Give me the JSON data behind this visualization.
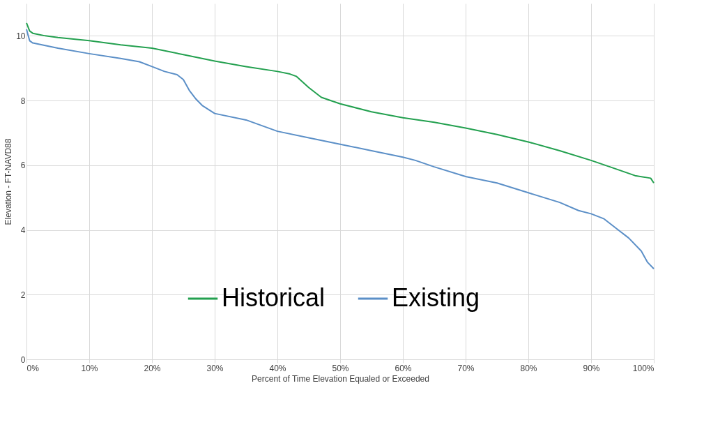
{
  "chart_data": {
    "type": "line",
    "xlabel": "Percent of Time Elevation Equaled or Exceeded",
    "ylabel": "Elevation - FT-NAVD88",
    "xlim": [
      0,
      100
    ],
    "ylim": [
      0,
      11
    ],
    "xticks": [
      {
        "value": 0,
        "label": "0%"
      },
      {
        "value": 10,
        "label": "10%"
      },
      {
        "value": 20,
        "label": "20%"
      },
      {
        "value": 30,
        "label": "30%"
      },
      {
        "value": 40,
        "label": "40%"
      },
      {
        "value": 50,
        "label": "50%"
      },
      {
        "value": 60,
        "label": "60%"
      },
      {
        "value": 70,
        "label": "70%"
      },
      {
        "value": 80,
        "label": "80%"
      },
      {
        "value": 90,
        "label": "90%"
      },
      {
        "value": 100,
        "label": "100%"
      }
    ],
    "yticks": [
      0,
      2,
      4,
      6,
      8,
      10
    ],
    "grid": true,
    "legend": "bottom",
    "marker": "none",
    "line_style": "solid",
    "series": [
      {
        "name": "Historical",
        "color": "#23a04f",
        "x": [
          0,
          0.5,
          1,
          3,
          5,
          10,
          15,
          20,
          25,
          30,
          35,
          40,
          42,
          43,
          45,
          47,
          50,
          55,
          60,
          65,
          70,
          75,
          80,
          85,
          90,
          93,
          97,
          99.5,
          100
        ],
        "values": [
          10.4,
          10.15,
          10.08,
          10.0,
          9.95,
          9.85,
          9.72,
          9.62,
          9.42,
          9.22,
          9.05,
          8.9,
          8.82,
          8.75,
          8.4,
          8.1,
          7.9,
          7.65,
          7.47,
          7.33,
          7.15,
          6.95,
          6.72,
          6.45,
          6.15,
          5.95,
          5.68,
          5.6,
          5.45
        ]
      },
      {
        "name": "Existing",
        "color": "#5b8fc7",
        "x": [
          0,
          0.5,
          1,
          5,
          10,
          15,
          18,
          20,
          22,
          24,
          25,
          26,
          27,
          28,
          30,
          35,
          40,
          45,
          50,
          55,
          60,
          62,
          65,
          70,
          75,
          80,
          85,
          88,
          90,
          92,
          94,
          96,
          98,
          99,
          100
        ],
        "values": [
          10.2,
          9.85,
          9.78,
          9.62,
          9.45,
          9.3,
          9.2,
          9.05,
          8.9,
          8.8,
          8.65,
          8.3,
          8.05,
          7.85,
          7.6,
          7.4,
          7.05,
          6.85,
          6.65,
          6.45,
          6.25,
          6.15,
          5.95,
          5.65,
          5.45,
          5.15,
          4.85,
          4.6,
          4.5,
          4.35,
          4.05,
          3.75,
          3.35,
          3.0,
          2.8
        ]
      }
    ]
  }
}
